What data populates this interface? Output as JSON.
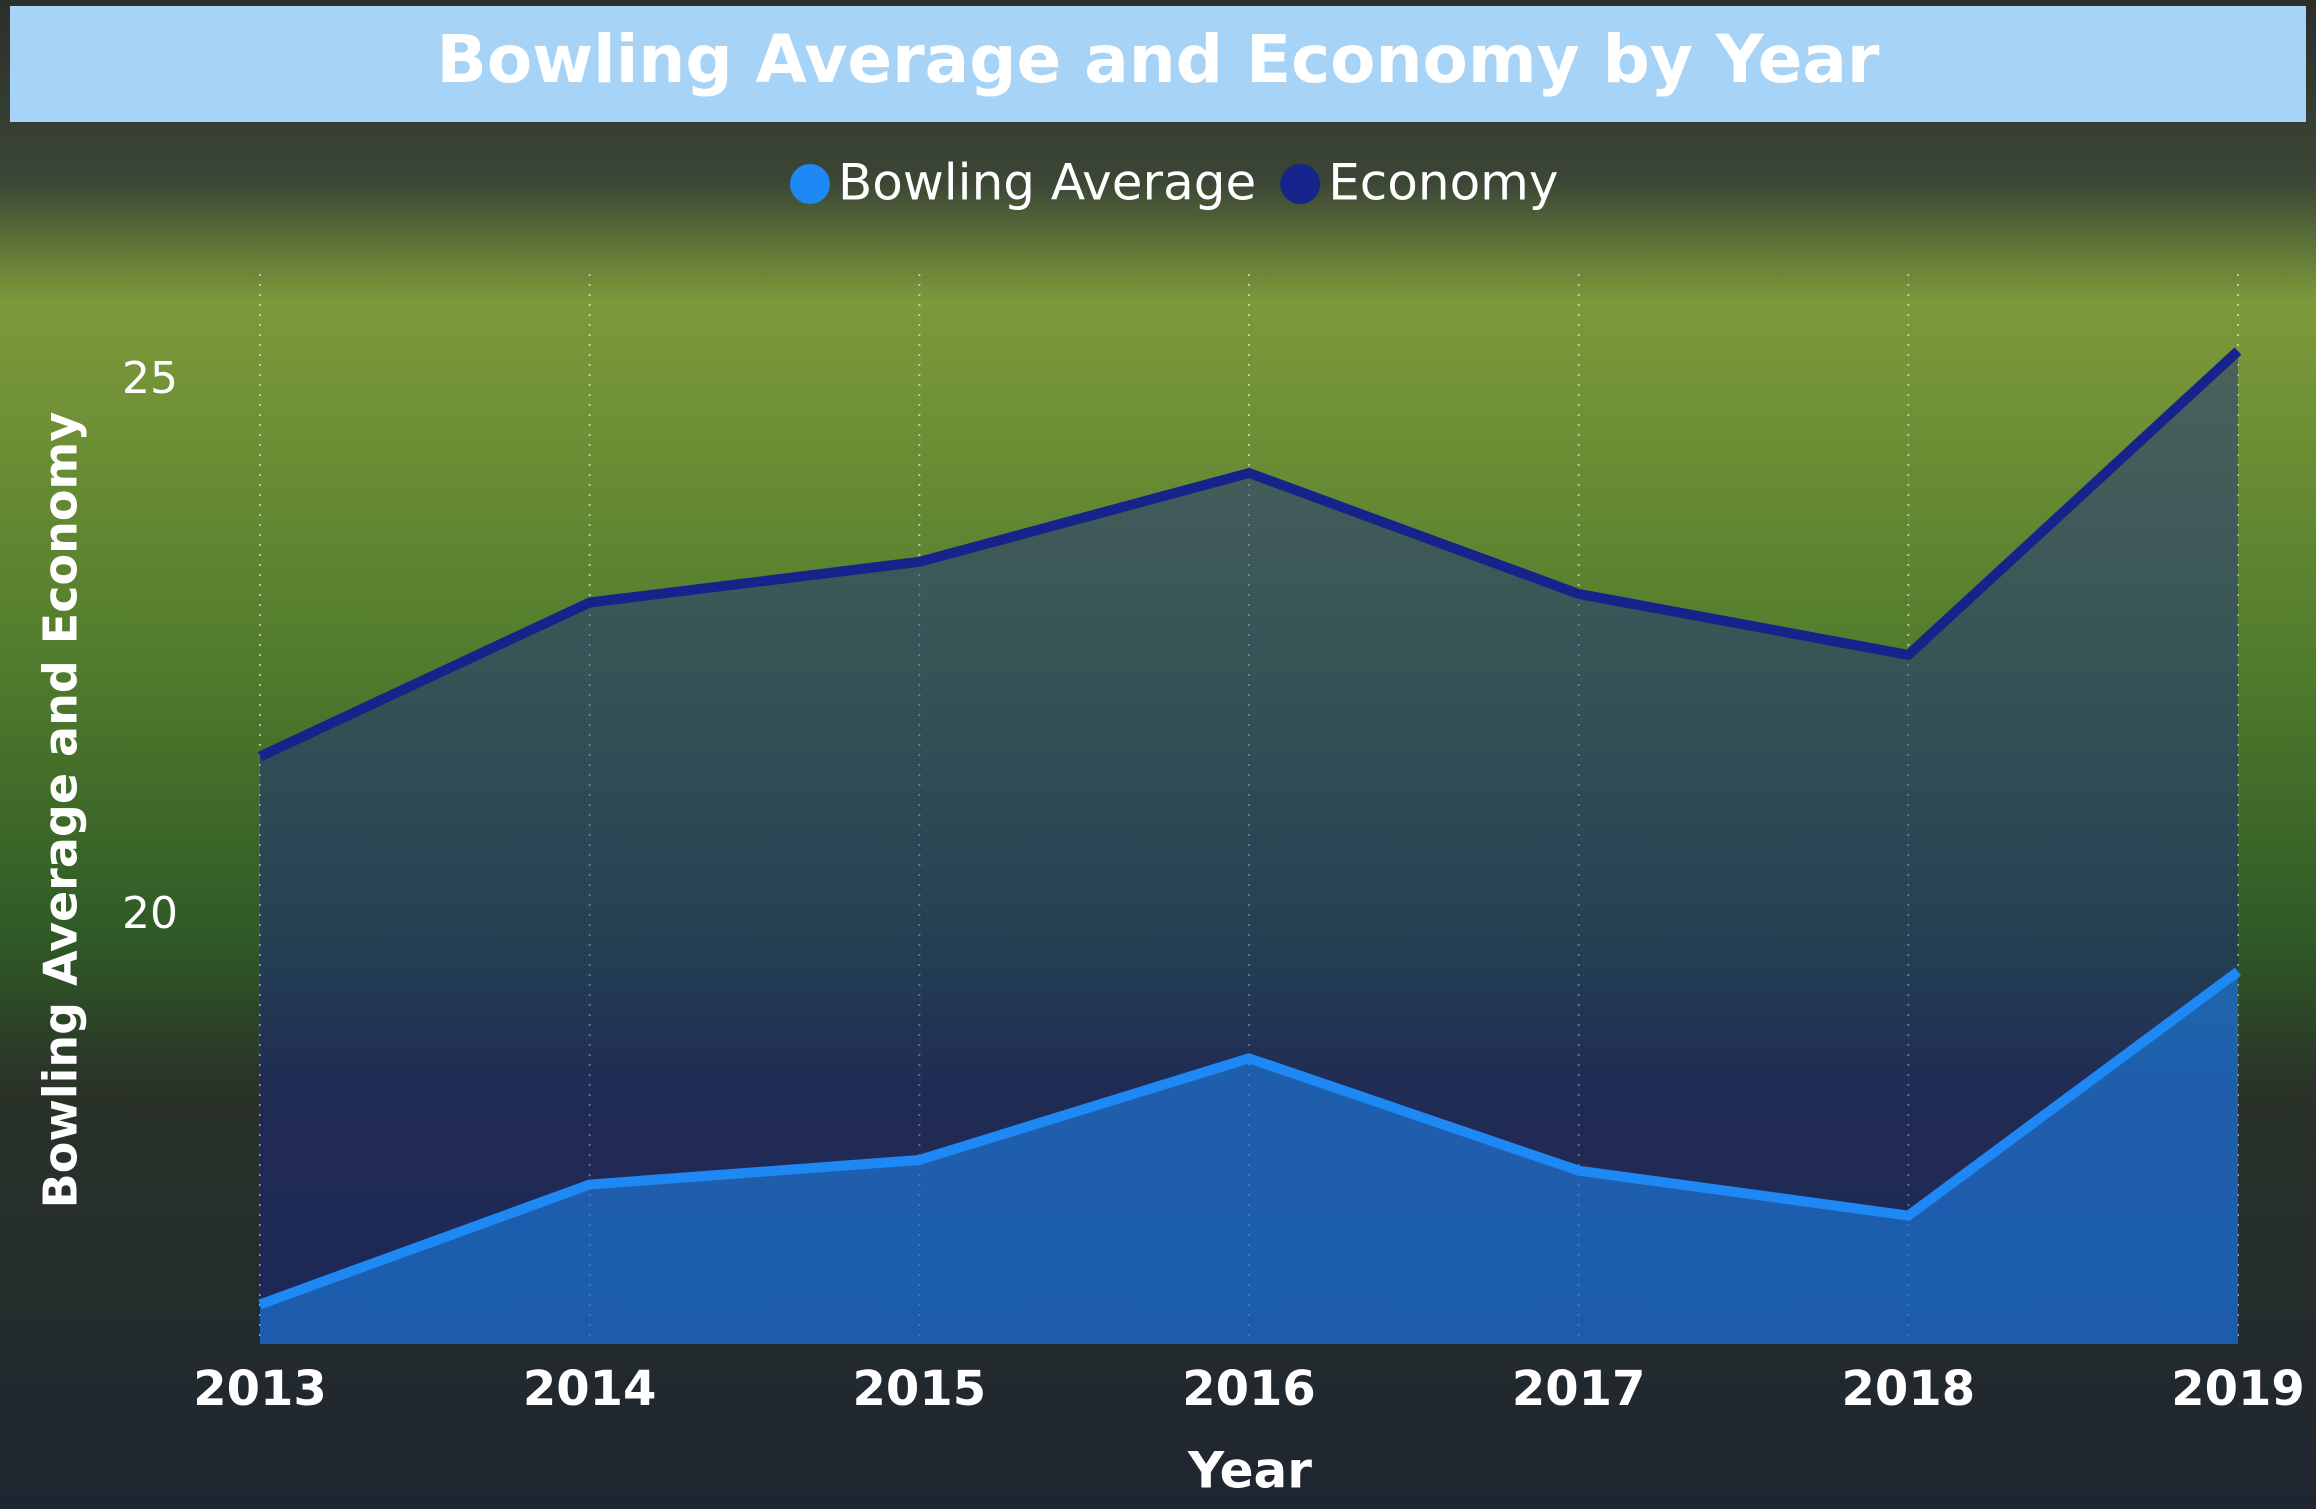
{
  "chart_data": {
    "type": "line",
    "title": "Bowling Average and Economy by Year",
    "x_label": "Year",
    "y_label": "Bowling Average and Economy",
    "categories": [
      "2013",
      "2014",
      "2015",
      "2016",
      "2017",
      "2018",
      "2019"
    ],
    "series": [
      {
        "name": "Bowling Average",
        "color": "#1e88f5",
        "values": [
          16.37,
          17.49,
          17.72,
          18.67,
          17.62,
          17.2,
          19.48
        ]
      },
      {
        "name": "Economy",
        "color": "#16238a",
        "values": [
          21.49,
          22.93,
          23.31,
          24.14,
          23.01,
          22.44,
          25.28
        ]
      }
    ],
    "ylim": [
      16,
      26
    ],
    "yticks": [
      20,
      25
    ],
    "grid": true,
    "legend": "top"
  }
}
